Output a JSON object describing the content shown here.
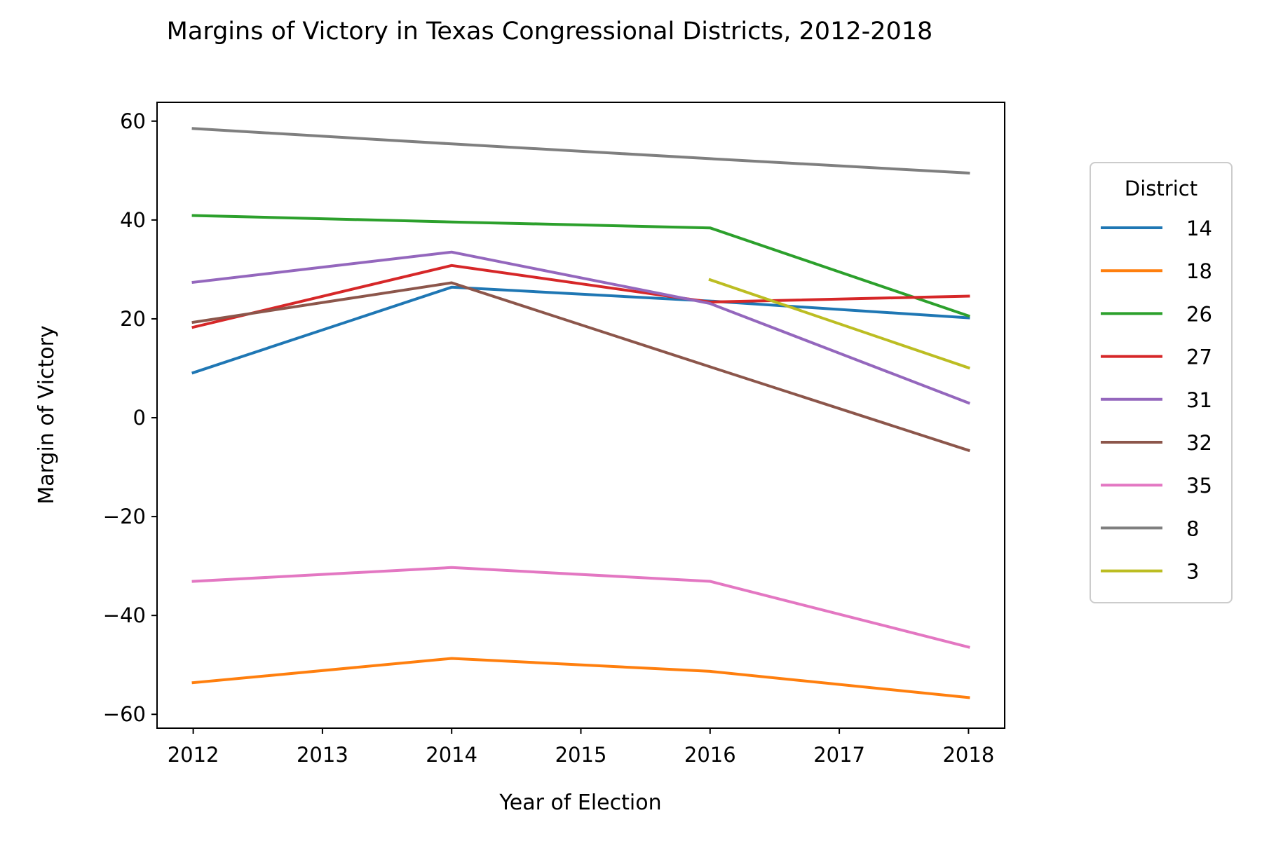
{
  "chart_data": {
    "type": "line",
    "title": "Margins of Victory in Texas Congressional Districts, 2012-2018",
    "xlabel": "Year of Election",
    "ylabel": "Margin of Victory",
    "xlim": [
      2011.72,
      2018.28
    ],
    "ylim": [
      -62.8,
      63.8
    ],
    "xticks": [
      2012,
      2013,
      2014,
      2015,
      2016,
      2017,
      2018
    ],
    "yticks": [
      -60,
      -40,
      -20,
      0,
      20,
      40,
      60
    ],
    "xtick_labels": [
      "2012",
      "2013",
      "2014",
      "2015",
      "2016",
      "2017",
      "2018"
    ],
    "ytick_labels": [
      "−60",
      "−40",
      "−20",
      "0",
      "20",
      "40",
      "60"
    ],
    "grid": false,
    "legend": {
      "title": "District",
      "placement": "outside right"
    },
    "series": [
      {
        "name": "14",
        "color": "#1f77b4",
        "x": [
          2012,
          2014,
          2016,
          2018
        ],
        "values": [
          9.1,
          26.4,
          23.6,
          20.2
        ]
      },
      {
        "name": "18",
        "color": "#ff7f0e",
        "x": [
          2012,
          2014,
          2016,
          2018
        ],
        "values": [
          -53.6,
          -48.7,
          -51.3,
          -56.6
        ]
      },
      {
        "name": "26",
        "color": "#2ca02c",
        "x": [
          2012,
          2014,
          2016,
          2018
        ],
        "values": [
          40.9,
          39.6,
          38.4,
          20.6
        ]
      },
      {
        "name": "27",
        "color": "#d62728",
        "x": [
          2012,
          2014,
          2016,
          2018
        ],
        "values": [
          18.3,
          30.8,
          23.4,
          24.6
        ]
      },
      {
        "name": "31",
        "color": "#9467bd",
        "x": [
          2012,
          2014,
          2016,
          2018
        ],
        "values": [
          27.4,
          33.5,
          23.1,
          3.0
        ]
      },
      {
        "name": "32",
        "color": "#8c564b",
        "x": [
          2012,
          2014,
          2016,
          2018
        ],
        "values": [
          19.3,
          27.3,
          10.3,
          -6.6
        ]
      },
      {
        "name": "35",
        "color": "#e377c2",
        "x": [
          2012,
          2014,
          2016,
          2018
        ],
        "values": [
          -33.1,
          -30.3,
          -33.1,
          -46.4
        ]
      },
      {
        "name": "8",
        "color": "#7f7f7f",
        "x": [
          2012,
          2014,
          2016,
          2018
        ],
        "values": [
          58.5,
          55.4,
          52.4,
          49.5
        ]
      },
      {
        "name": "3",
        "color": "#bcbd22",
        "x": [
          2016,
          2018
        ],
        "values": [
          27.9,
          10.1
        ]
      }
    ]
  }
}
